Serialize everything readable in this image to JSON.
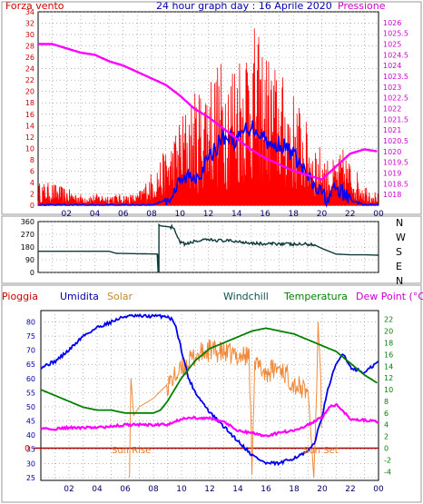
{
  "header": {
    "left_label": "Forza vento",
    "title": "24 hour graph day : 16 Aprile 2020",
    "right_label": "Pressione"
  },
  "compass": [
    "N",
    "W",
    "S",
    "E",
    "N"
  ],
  "legend_bottom": {
    "pioggia": "Pioggia",
    "umidita": "Umidita",
    "solar": "Solar",
    "windchill": "Windchill",
    "temperatura": "Temperatura",
    "dewpoint": "Dew Point (°C)"
  },
  "annotations": {
    "sunrise": "Sun Rise",
    "sunset": "Sun Set"
  },
  "colors": {
    "wind": "#ff0000",
    "gust": "#ff0000",
    "avg": "#0000ff",
    "pressure": "#ff00ff",
    "direction": "#0f3a3a",
    "humidity": "#0000ee",
    "solar": "#f08a3a",
    "temperature": "#008000",
    "dewpoint": "#ff00ff",
    "rain": "#aa0000",
    "axis_left": "#cc0000",
    "axis_right": "#cc00cc",
    "axis_right_bottom": "#008000",
    "grid": "#888888"
  },
  "chart_data": [
    {
      "type": "line",
      "title": "24 hour graph day : 16 Aprile 2020",
      "x_ticks": [
        "02",
        "04",
        "06",
        "08",
        "10",
        "12",
        "14",
        "16",
        "18",
        "20",
        "22",
        "00"
      ],
      "xlim": [
        0,
        24
      ],
      "y_left_label": "Forza vento",
      "y_left_ticks": [
        0,
        2,
        4,
        6,
        8,
        10,
        12,
        14,
        16,
        18,
        20,
        22,
        24,
        26,
        28,
        30,
        32,
        34
      ],
      "y_left_lim": [
        0,
        34
      ],
      "y_right_label": "Pressione",
      "y_right_ticks": [
        "1018",
        "1018.5",
        "1019",
        "1019.5",
        "1020",
        "1020.5",
        "1021",
        "1021.5",
        "1022",
        "1022.5",
        "1023",
        "1023.5",
        "1024",
        "1024.5",
        "1025",
        "1025.5",
        "1026"
      ],
      "y_right_lim": [
        1017.5,
        1026.5
      ],
      "series": [
        {
          "axis": "left",
          "x": [
            0,
            1,
            2,
            3,
            4,
            5,
            6,
            7,
            7.5,
            8,
            8.5,
            9,
            9.5,
            10,
            10.5,
            11,
            11.5,
            12,
            12.5,
            13,
            13.5,
            14,
            14.5,
            15,
            15.5,
            16,
            16.5,
            17,
            17.5,
            18,
            18.5,
            19,
            19.5,
            20,
            20.5,
            21,
            21.5,
            22,
            22.5,
            23,
            24
          ],
          "y": [
            4,
            4,
            3,
            2,
            2,
            2,
            2,
            2,
            4,
            6,
            8,
            10,
            12,
            16,
            18,
            20,
            22,
            24,
            25,
            26,
            27,
            28,
            30,
            33,
            30,
            28,
            26,
            24,
            22,
            20,
            18,
            14,
            12,
            10,
            8,
            8,
            10,
            8,
            6,
            4,
            2
          ]
        },
        {
          "axis": "left",
          "x": [
            0,
            1,
            2,
            3,
            4,
            5,
            6,
            7,
            8,
            9,
            9.5,
            10,
            10.5,
            11,
            11.5,
            12,
            12.5,
            13,
            13.5,
            14,
            14.5,
            15,
            15.5,
            16,
            16.5,
            17,
            17.5,
            18,
            18.5,
            19,
            19.5,
            20,
            20.5,
            21,
            21.5,
            22,
            23,
            24
          ],
          "y": [
            0,
            0,
            0,
            0,
            0,
            0,
            0,
            0,
            0,
            1,
            2,
            4,
            5,
            5,
            6,
            8,
            10,
            12,
            12,
            11,
            13,
            14,
            13,
            12,
            10,
            11,
            10,
            9,
            7,
            5,
            3,
            2,
            1,
            3,
            2,
            1,
            0,
            0
          ]
        },
        {
          "axis": "right",
          "x": [
            0,
            1,
            2,
            3,
            4,
            5,
            6,
            7,
            8,
            9,
            10,
            11,
            12,
            13,
            14,
            15,
            16,
            17,
            18,
            19,
            20,
            21,
            22,
            23,
            24
          ],
          "y": [
            1025.0,
            1025.0,
            1024.8,
            1024.6,
            1024.5,
            1024.2,
            1024.0,
            1023.7,
            1023.4,
            1023.1,
            1022.6,
            1022.0,
            1021.6,
            1021.1,
            1020.6,
            1020.1,
            1019.7,
            1019.4,
            1019.1,
            1018.9,
            1018.7,
            1019.3,
            1019.9,
            1020.1,
            1020.0
          ]
        }
      ]
    },
    {
      "type": "line",
      "x_ticks": [
        "02",
        "04",
        "06",
        "08",
        "10",
        "12",
        "14",
        "16",
        "18",
        "20",
        "22",
        "00"
      ],
      "xlim": [
        0,
        24
      ],
      "y_ticks": [
        0,
        90,
        180,
        270,
        360
      ],
      "ylim": [
        0,
        360
      ],
      "series": [
        {
          "x": [
            0,
            5,
            5.5,
            8.5,
            8.5,
            8.6,
            9.5,
            10,
            10.5,
            11,
            12,
            13,
            14,
            15,
            16,
            17,
            18,
            19,
            19.5,
            20,
            21,
            22,
            23,
            24
          ],
          "y": [
            150,
            150,
            135,
            130,
            340,
            330,
            320,
            210,
            200,
            220,
            230,
            225,
            220,
            210,
            200,
            205,
            198,
            200,
            195,
            170,
            130,
            125,
            125,
            122
          ]
        }
      ]
    },
    {
      "type": "line",
      "x_ticks": [
        "02",
        "04",
        "06",
        "08",
        "10",
        "12",
        "14",
        "16",
        "18",
        "20",
        "22",
        "00"
      ],
      "xlim": [
        0,
        24
      ],
      "y_left_label": "Umidita",
      "y_left_ticks": [
        25,
        30,
        35,
        40,
        45,
        50,
        55,
        60,
        65,
        70,
        75,
        80
      ],
      "y_left_lim": [
        24,
        84
      ],
      "y_right_label": "Dew Point (°C)",
      "y_right_ticks": [
        -4,
        -2,
        0,
        2,
        4,
        6,
        8,
        10,
        12,
        14,
        16,
        18,
        20,
        22
      ],
      "y_right_lim": [
        -5.5,
        23.5
      ],
      "rain_level": "0",
      "series": [
        {
          "axis": "left",
          "x": [
            0,
            1,
            2,
            3,
            4,
            5,
            6,
            7,
            8,
            9,
            9.5,
            10,
            10.5,
            11,
            12,
            13,
            14,
            15,
            16,
            17,
            18,
            19,
            19.5,
            20,
            20.5,
            21,
            21.5,
            22,
            23,
            24
          ],
          "y": [
            64,
            66,
            70,
            75,
            78,
            80,
            82,
            82,
            82,
            82,
            80,
            70,
            60,
            55,
            48,
            43,
            38,
            33,
            30,
            30,
            32,
            34,
            38,
            47,
            58,
            65,
            69,
            64,
            62,
            66
          ]
        },
        {
          "axis": "left",
          "x": [
            6.3,
            6.4,
            6.6,
            7,
            8,
            9,
            10,
            11,
            12,
            13,
            14,
            14.8,
            15,
            15.2,
            16,
            17,
            18,
            19,
            19.4,
            19.6,
            19.7,
            19.9,
            20
          ],
          "y": [
            25,
            60,
            47,
            50,
            53,
            58,
            63,
            68,
            70,
            69,
            68,
            68,
            30,
            65,
            62,
            64,
            58,
            55,
            25,
            55,
            80,
            60,
            25
          ]
        },
        {
          "axis": "right",
          "x": [
            0,
            1,
            2,
            3,
            4,
            5,
            6,
            7,
            8,
            8.5,
            9,
            10,
            11,
            12,
            13,
            14,
            15,
            16,
            17,
            18,
            19,
            20,
            21,
            22,
            23,
            24
          ],
          "y": [
            10,
            9,
            8,
            7,
            6.5,
            6.5,
            6,
            6,
            6,
            6.5,
            8,
            12,
            15,
            17,
            18,
            19,
            20,
            20.5,
            20,
            19.5,
            18.5,
            17.5,
            16.5,
            14.5,
            12.5,
            11
          ]
        },
        {
          "axis": "right",
          "x": [
            0,
            1,
            2,
            3,
            4,
            5,
            6,
            7,
            8,
            9,
            10,
            11,
            12,
            13,
            14,
            15,
            16,
            17,
            18,
            19,
            20,
            20.5,
            21,
            22,
            23,
            24
          ],
          "y": [
            3.3,
            3.3,
            3.5,
            3.5,
            3.5,
            3.7,
            4,
            4,
            4,
            4,
            5,
            5.2,
            5.1,
            4.5,
            3,
            2.6,
            2,
            2.7,
            3,
            4,
            5.3,
            7,
            7.5,
            5,
            4.8,
            4.5
          ]
        }
      ]
    }
  ]
}
